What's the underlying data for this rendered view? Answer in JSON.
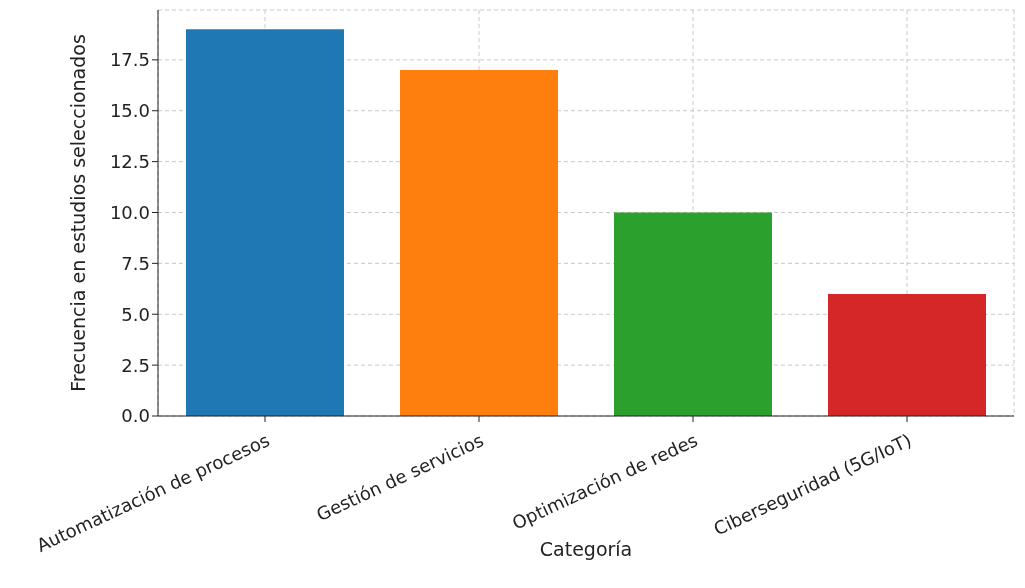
{
  "chart_data": {
    "type": "bar",
    "xlabel": "Categoría",
    "ylabel": "Frecuencia en estudios seleccionados",
    "categories": [
      "Automatización de procesos",
      "Gestión de servicios",
      "Optimización de redes",
      "Ciberseguridad (5G/IoT)"
    ],
    "values": [
      19,
      17,
      10,
      6
    ],
    "colors": [
      "#1f77b4",
      "#ff7f0e",
      "#2ca02c",
      "#d62728"
    ],
    "ylim": [
      0,
      19.95
    ],
    "yticks": [
      {
        "value": 0,
        "label": "0.0"
      },
      {
        "value": 2.5,
        "label": "2.5"
      },
      {
        "value": 5,
        "label": "5.0"
      },
      {
        "value": 7.5,
        "label": "7.5"
      },
      {
        "value": 10,
        "label": "10.0"
      },
      {
        "value": 12.5,
        "label": "12.5"
      },
      {
        "value": 15,
        "label": "15.0"
      },
      {
        "value": 17.5,
        "label": "17.5"
      }
    ],
    "grid": true
  }
}
